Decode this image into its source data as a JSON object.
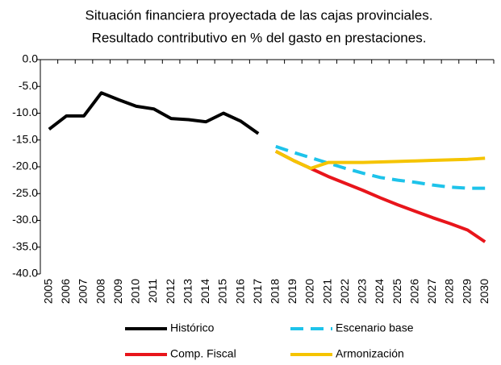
{
  "chart_data": {
    "type": "line",
    "title": [
      "Situación financiera proyectada de las cajas provinciales.",
      "Resultado contributivo en % del gasto en prestaciones."
    ],
    "categories": [
      "2005",
      "2006",
      "2007",
      "2008",
      "2009",
      "2010",
      "2011",
      "2012",
      "2013",
      "2014",
      "2015",
      "2016",
      "2017",
      "2018",
      "2019",
      "2020",
      "2021",
      "2022",
      "2023",
      "2024",
      "2025",
      "2026",
      "2027",
      "2028",
      "2029",
      "2030"
    ],
    "series": [
      {
        "name": "Histórico",
        "color": "#000000",
        "dash": false,
        "values": [
          -13,
          -10.5,
          -10.5,
          -6.2,
          -7.5,
          -8.7,
          -9.2,
          -11,
          -11.2,
          -11.6,
          -10,
          -11.5,
          -13.8,
          null,
          null,
          null,
          null,
          null,
          null,
          null,
          null,
          null,
          null,
          null,
          null,
          null
        ]
      },
      {
        "name": "Escenario base",
        "color": "#1ec3ea",
        "dash": true,
        "values": [
          null,
          null,
          null,
          null,
          null,
          null,
          null,
          null,
          null,
          null,
          null,
          null,
          null,
          -16.2,
          -17.3,
          -18.3,
          -19.3,
          -20.3,
          -21.2,
          -22,
          -22.5,
          -22.9,
          -23.4,
          -23.8,
          -24,
          -24
        ]
      },
      {
        "name": "Comp. Fiscal",
        "color": "#e8151b",
        "dash": false,
        "values": [
          null,
          null,
          null,
          null,
          null,
          null,
          null,
          null,
          null,
          null,
          null,
          null,
          null,
          -17.1,
          -18.8,
          -20.3,
          -21.8,
          -23.1,
          -24.4,
          -25.8,
          -27.1,
          -28.3,
          -29.5,
          -30.6,
          -31.8,
          -34
        ]
      },
      {
        "name": "Armonización",
        "color": "#f5c400",
        "dash": false,
        "values": [
          null,
          null,
          null,
          null,
          null,
          null,
          null,
          null,
          null,
          null,
          null,
          null,
          null,
          -17.1,
          -18.8,
          -20.3,
          -19.2,
          -19.2,
          -19.2,
          -19.1,
          -19,
          -18.9,
          -18.8,
          -18.7,
          -18.6,
          -18.4
        ]
      }
    ],
    "ylim": [
      -40,
      0
    ],
    "yticks": [
      {
        "value": 0,
        "label": "0.0"
      },
      {
        "value": -5,
        "label": "-5.0"
      },
      {
        "value": -10,
        "label": "-10.0"
      },
      {
        "value": -15,
        "label": "-15.0"
      },
      {
        "value": -20,
        "label": "-20.0"
      },
      {
        "value": -25,
        "label": "-25.0"
      },
      {
        "value": -30,
        "label": "-30.0"
      },
      {
        "value": -35,
        "label": "-35.0"
      },
      {
        "value": -40,
        "label": "-40.0"
      }
    ],
    "grid": false
  }
}
